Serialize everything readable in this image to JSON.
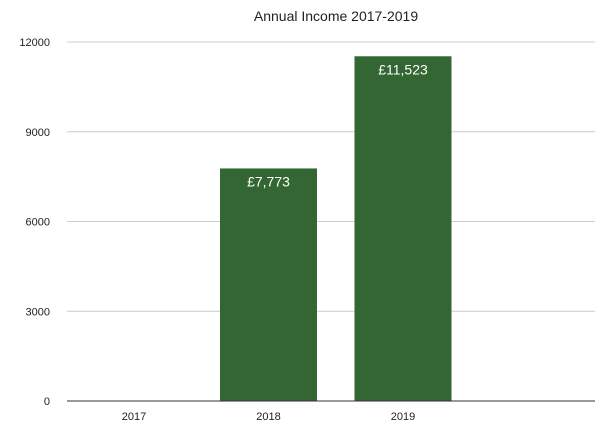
{
  "chart_data": {
    "type": "bar",
    "title": "Annual Income 2017-2019",
    "xlabel": "",
    "ylabel": "",
    "categories": [
      "2017",
      "2018",
      "2019"
    ],
    "values": [
      0,
      7773,
      11523
    ],
    "data_labels": [
      "",
      "£7,773",
      "£11,523"
    ],
    "y_ticks": [
      "0",
      "3000",
      "6000",
      "9000",
      "12000"
    ],
    "ylim": [
      0,
      12000
    ],
    "grid": true,
    "legend": "none",
    "colors": {
      "bar": "#336633",
      "grid": "#cccccc",
      "axis": "#333333"
    }
  }
}
